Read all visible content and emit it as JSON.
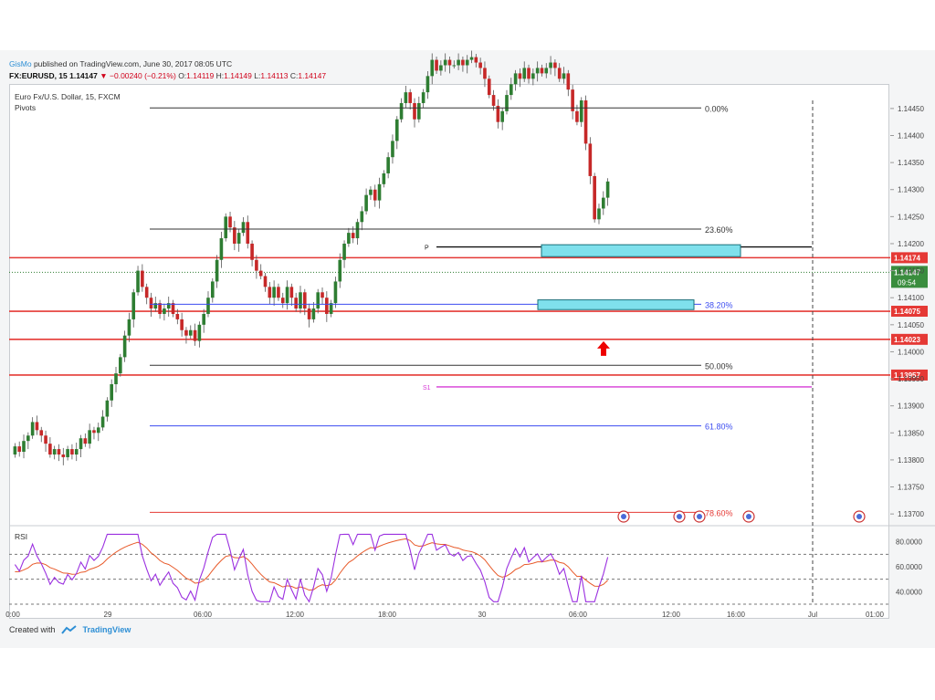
{
  "header": {
    "user": "GisMo",
    "published": "published on TradingView.com, June 30, 2017 08:05 UTC",
    "symbol": "FX:EURUSD, 15",
    "price": "1.14147",
    "change": "▼ −0.00240 (−0.21%)",
    "ohlc_open_label": "O:",
    "ohlc_open": "1.14119",
    "ohlc_high_label": "H:",
    "ohlc_high": "1.14149",
    "ohlc_low_label": "L:",
    "ohlc_low": "1.14113",
    "ohlc_close_label": "C:",
    "ohlc_close": "1.14147"
  },
  "legend": {
    "instrument": "Euro Fx/U.S. Dollar, 15, FXCM",
    "indicator": "Pivots"
  },
  "rsi_label": "RSI",
  "footer": {
    "created_with": "Created with",
    "brand": "TradingView"
  },
  "colors": {
    "up": "#2e7d32",
    "down": "#c62828",
    "level": "#e53935",
    "zone": "#7fe0ec",
    "fib_blue": "#3b4cf0",
    "pivot_s1": "#d63ad6",
    "rsi": "#9b30e0",
    "rsi_ma": "#e85a2a"
  },
  "chart_data": {
    "type": "candlestick",
    "symbol": "EURUSD",
    "timeframe": "15",
    "ylim": [
      1.1368,
      1.14465
    ],
    "y_ticks": [
      "1.14450",
      "1.14400",
      "1.14350",
      "1.14300",
      "1.14250",
      "1.14200",
      "1.14150",
      "1.14100",
      "1.14050",
      "1.14000",
      "1.13950",
      "1.13900",
      "1.13850",
      "1.13800",
      "1.13750",
      "1.13700"
    ],
    "x_ticks": [
      "0:00",
      "29",
      "06:00",
      "12:00",
      "18:00",
      "30",
      "06:00",
      "12:00",
      "16:00",
      "Jul",
      "01:00"
    ],
    "horizontal_levels": [
      {
        "price": 1.14174,
        "label": "1.14174"
      },
      {
        "price": 1.14075,
        "label": "1.14075"
      },
      {
        "price": 1.14023,
        "label": "1.14023"
      },
      {
        "price": 1.13957,
        "label": "1.13957"
      }
    ],
    "last_price": {
      "value": "1.14147",
      "countdown": "09:54"
    },
    "fibonacci": [
      {
        "level": "0.00%",
        "price": 1.14451
      },
      {
        "level": "23.60%",
        "price": 1.14227
      },
      {
        "level": "38.20%",
        "price": 1.14088
      },
      {
        "level": "50.00%",
        "price": 1.13975
      },
      {
        "level": "61.80%",
        "price": 1.13863
      },
      {
        "level": "78.60%",
        "price": 1.13703
      }
    ],
    "pivots": [
      {
        "label": "P",
        "price": 1.14194
      },
      {
        "label": "S1",
        "price": 1.13935
      }
    ],
    "candles": {
      "start": 1.1381,
      "moves": [
        0.00015,
        -0.0001,
        0.0002,
        0.0001,
        0.00025,
        -0.00015,
        -0.0001,
        -0.00015,
        -0.0002,
        0.0001,
        -0.0001,
        -5e-05,
        0.00015,
        -0.0001,
        0.0001,
        0.0002,
        -0.0001,
        0.00025,
        -5e-05,
        0.0001,
        0.0002,
        0.0003,
        0.0003,
        0.0002,
        0.0003,
        0.0004,
        0.0003,
        0.0005,
        0.0004,
        -0.0003,
        -0.0002,
        -0.0002,
        0.0001,
        -0.0002,
        0.0001,
        0.0001,
        -0.0002,
        -0.0001,
        -0.0002,
        -0.0001,
        0.0001,
        -0.0002,
        0.0003,
        0.0002,
        0.0003,
        0.0003,
        0.0004,
        0.0004,
        0.0004,
        -0.0002,
        -0.0003,
        0.0002,
        0.0002,
        -0.0004,
        -0.0003,
        -0.0002,
        -0.0001,
        -0.0002,
        -0.0002,
        0.0002,
        -0.0002,
        -0.0001,
        0.0003,
        -0.0002,
        -0.0002,
        0.0003,
        -0.0003,
        -0.0002,
        0.0002,
        0.0003,
        -0.0001,
        -0.0003,
        0.0002,
        0.0004,
        0.0004,
        0.0003,
        0.0002,
        -0.0001,
        0.0003,
        0.0002,
        0.0003,
        0.0001,
        -0.0002,
        0.0003,
        0.0002,
        0.0003,
        0.0003,
        0.0004,
        0.0003,
        0.0002,
        -0.0002,
        -0.0003,
        0.0003,
        0.0002,
        0.0003,
        0.0003,
        -0.0002,
        0.0001,
        0.0001,
        -0.0001,
        0.0,
        0.0001,
        -0.0001,
        0.0001,
        5e-05,
        -0.0001,
        -0.0001,
        -0.0002,
        -0.0003,
        -0.0002,
        -0.0003,
        0.0002,
        0.0003,
        0.0002,
        0.0002,
        -0.0001,
        0.0002,
        -0.0002,
        0.0001,
        0.0001,
        -0.0001,
        0.0001,
        0.0001,
        -0.0001,
        -0.0002,
        0.0001,
        -0.0003,
        -0.0004,
        -0.0002,
        0.0004,
        -0.0008,
        -0.0006,
        -0.0008,
        0.0002,
        0.0002,
        0.0003
      ]
    },
    "rsi": {
      "ylim": [
        30,
        90
      ],
      "y_ticks": [
        "80.0000",
        "60.0000",
        "40.0000"
      ],
      "levels": [
        70,
        50,
        30
      ]
    }
  }
}
